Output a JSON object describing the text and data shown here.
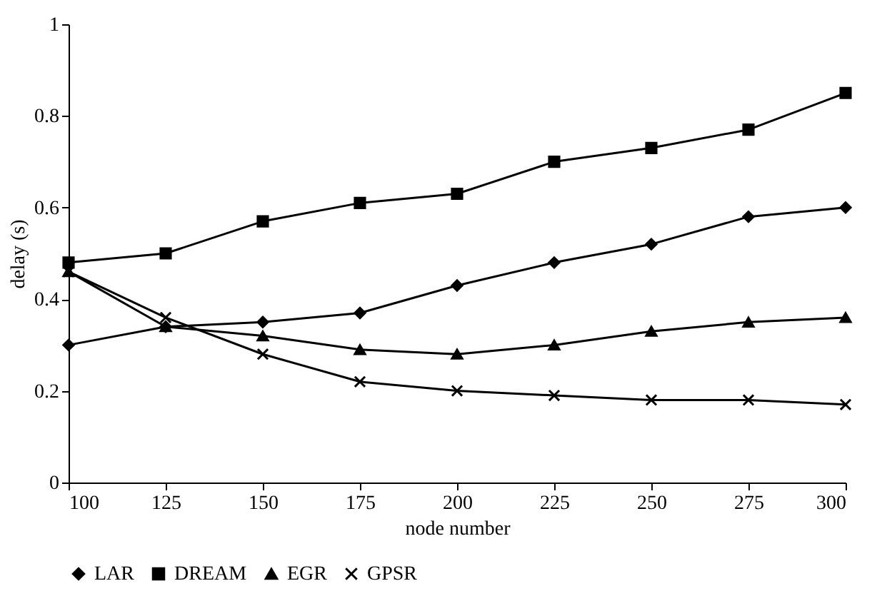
{
  "chart_data": {
    "type": "line",
    "xlabel": "node number",
    "ylabel": "delay (s)",
    "x": [
      100,
      125,
      150,
      175,
      200,
      225,
      250,
      275,
      300
    ],
    "series": [
      {
        "name": "LAR",
        "color": "#000000",
        "marker": "diamond",
        "values": [
          0.3,
          0.34,
          0.35,
          0.37,
          0.43,
          0.48,
          0.52,
          0.58,
          0.6
        ]
      },
      {
        "name": "DREAM",
        "color": "#000000",
        "marker": "square",
        "values": [
          0.48,
          0.5,
          0.57,
          0.61,
          0.63,
          0.7,
          0.73,
          0.77,
          0.85
        ]
      },
      {
        "name": "EGR",
        "color": "#000000",
        "marker": "triangle",
        "values": [
          0.46,
          0.34,
          0.32,
          0.29,
          0.28,
          0.3,
          0.33,
          0.35,
          0.36
        ]
      },
      {
        "name": "GPSR",
        "color": "#000000",
        "marker": "cross",
        "values": [
          0.46,
          0.36,
          0.28,
          0.22,
          0.2,
          0.19,
          0.18,
          0.18,
          0.17
        ]
      }
    ],
    "xlim": [
      100,
      300
    ],
    "xticks": [
      100,
      125,
      150,
      175,
      200,
      225,
      250,
      275,
      300
    ],
    "ylim": [
      0,
      1
    ],
    "yticks": [
      0,
      0.2,
      0.4,
      0.6,
      0.8,
      1
    ],
    "grid": false,
    "legend": "bottom",
    "line_style": "solid"
  }
}
